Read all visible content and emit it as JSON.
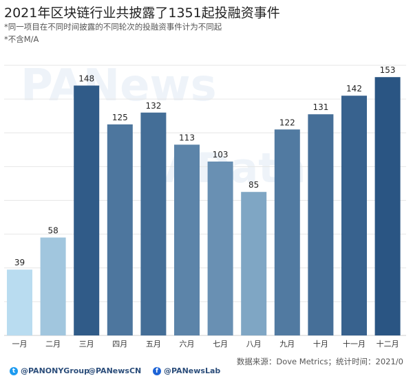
{
  "title": "2021年区块链行业共披露了1351起投融资事件",
  "notes": [
    "*同一项目在不同时间披露的不同轮次的投融资事件计为不同起",
    "*不含M/A"
  ],
  "watermarks": [
    "PANews",
    "PAData"
  ],
  "footer": {
    "source": "数据来源：Dove Metrics；统计时间：2021/0",
    "socials": [
      {
        "icon": "twitter-icon",
        "label": "@PANONYGroup"
      },
      {
        "icon": "",
        "label": "@PANewsCN"
      },
      {
        "icon": "facebook-icon",
        "label": "@PANewsLab"
      }
    ]
  },
  "colors": {
    "light": "#b9dcf0",
    "dark": "#2a5583",
    "grid": "#e6e6e6"
  },
  "chart_data": {
    "type": "bar",
    "title": "2021年区块链行业共披露了1351起投融资事件",
    "categories": [
      "一月",
      "二月",
      "三月",
      "四月",
      "五月",
      "六月",
      "七月",
      "八月",
      "九月",
      "十月",
      "十一月",
      "十二月"
    ],
    "values": [
      39,
      58,
      148,
      125,
      132,
      113,
      103,
      85,
      122,
      131,
      142,
      153
    ],
    "xlabel": "",
    "ylabel": "",
    "ylim": [
      0,
      160
    ],
    "grid": true
  }
}
